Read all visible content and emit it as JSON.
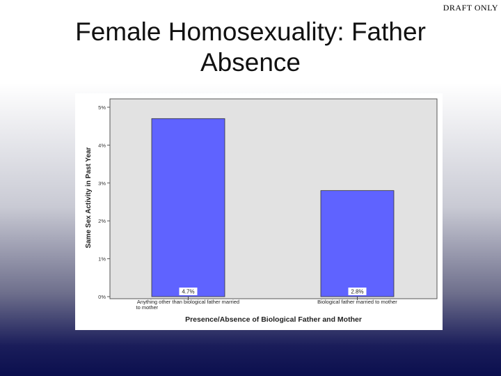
{
  "header": {
    "draft_label": "DRAFT ONLY",
    "title_line1": "Female Homosexuality: Father",
    "title_line2": "Absence"
  },
  "chart_data": {
    "type": "bar",
    "categories": [
      "Anything other than biological father married to mother",
      "Biological father married to mother"
    ],
    "values": [
      4.7,
      2.8
    ],
    "data_labels": [
      "4.7%",
      "2.8%"
    ],
    "xlabel": "Presence/Absence of Biological Father and Mother",
    "ylabel": "Same Sex Activity in Past Year",
    "ylim": [
      0,
      5
    ],
    "yticks": [
      "0%",
      "1%",
      "2%",
      "3%",
      "4%",
      "5%"
    ],
    "bar_color": "#5f63ff",
    "plot_background": "#e2e2e2",
    "grid": false
  }
}
